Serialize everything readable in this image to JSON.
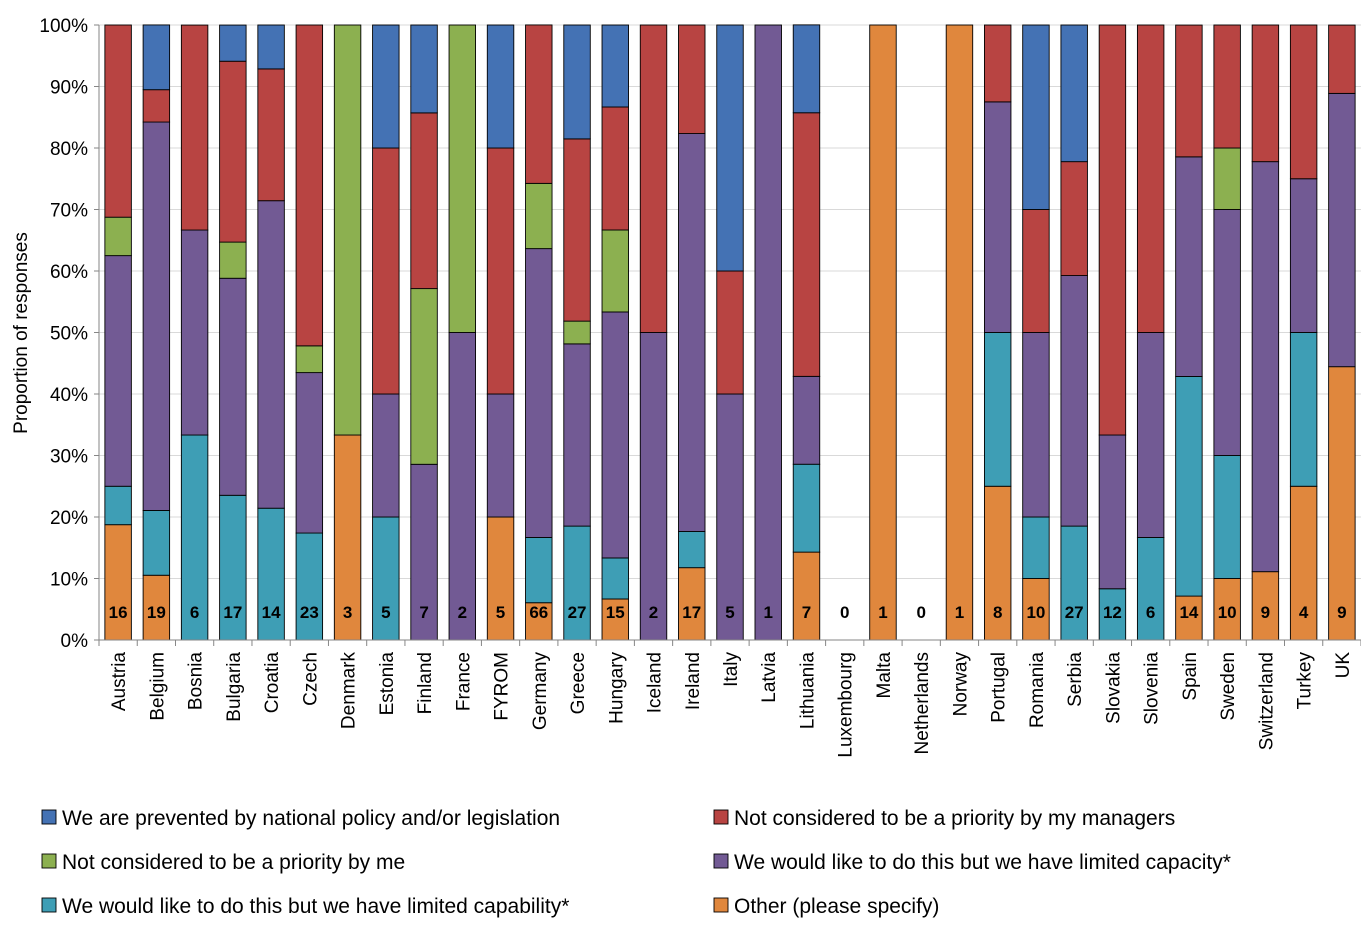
{
  "chart_data": {
    "type": "bar",
    "stacked": true,
    "percent": true,
    "ylabel": "Proportion of responses",
    "ylim": [
      0,
      100
    ],
    "yticks": [
      "0%",
      "10%",
      "20%",
      "30%",
      "40%",
      "50%",
      "60%",
      "70%",
      "80%",
      "90%",
      "100%"
    ],
    "grid": true,
    "legend_position": "bottom",
    "categories": [
      "Austria",
      "Belgium",
      "Bosnia",
      "Bulgaria",
      "Croatia",
      "Czech",
      "Denmark",
      "Estonia",
      "Finland",
      "France",
      "FYROM",
      "Germany",
      "Greece",
      "Hungary",
      "Iceland",
      "Ireland",
      "Italy",
      "Latvia",
      "Lithuania",
      "Luxembourg",
      "Malta",
      "Netherlands",
      "Norway",
      "Portugal",
      "Romania",
      "Serbia",
      "Slovakia",
      "Slovenia",
      "Spain",
      "Sweden",
      "Switzerland",
      "Turkey",
      "UK"
    ],
    "n_labels": [
      "16",
      "19",
      "6",
      "17",
      "14",
      "23",
      "3",
      "5",
      "7",
      "2",
      "5",
      "66",
      "27",
      "15",
      "2",
      "17",
      "5",
      "1",
      "7",
      "0",
      "1",
      "0",
      "1",
      "8",
      "10",
      "27",
      "12",
      "6",
      "14",
      "10",
      "9",
      "4",
      "9"
    ],
    "series": [
      {
        "name": "Other (please specify)",
        "color": "#E0873D",
        "values": [
          18.75,
          10.53,
          0,
          0,
          0,
          0,
          33.33,
          0,
          0,
          0,
          20,
          6.06,
          0,
          6.67,
          0,
          11.76,
          0,
          0,
          14.29,
          0,
          100,
          0,
          100,
          25,
          10,
          0,
          0,
          0,
          7.14,
          10,
          11.11,
          25,
          44.44
        ]
      },
      {
        "name": "We would like to do this but we have limited capability*",
        "color": "#3E9EB5",
        "values": [
          6.25,
          10.53,
          33.33,
          23.53,
          21.43,
          17.39,
          0,
          20,
          0,
          0,
          0,
          10.61,
          18.52,
          6.67,
          0,
          5.88,
          0,
          0,
          14.29,
          0,
          0,
          0,
          0,
          25,
          10,
          18.52,
          8.33,
          16.67,
          35.71,
          20,
          0,
          25,
          0
        ]
      },
      {
        "name": "We would like to do this but we have limited capacity*",
        "color": "#725A94",
        "values": [
          37.5,
          63.16,
          33.33,
          35.29,
          50,
          26.09,
          0,
          20,
          28.57,
          50,
          20,
          46.97,
          29.63,
          40,
          50,
          64.71,
          40,
          100,
          14.29,
          0,
          0,
          0,
          0,
          37.5,
          30,
          40.74,
          25,
          33.33,
          35.71,
          40,
          66.67,
          25,
          44.44
        ]
      },
      {
        "name": "Not considered to be a priority by me",
        "color": "#8CB050",
        "values": [
          6.25,
          0,
          0,
          5.88,
          0,
          4.35,
          66.67,
          0,
          28.57,
          50,
          0,
          10.61,
          3.7,
          13.33,
          0,
          0,
          0,
          0,
          0,
          0,
          0,
          0,
          0,
          0,
          0,
          0,
          0,
          0,
          0,
          10,
          0,
          0,
          0
        ]
      },
      {
        "name": "Not considered to be a priority by my managers",
        "color": "#B84442",
        "values": [
          31.25,
          5.26,
          33.33,
          29.41,
          21.43,
          52.17,
          0,
          40,
          28.57,
          0,
          40,
          25.76,
          29.63,
          20,
          50,
          17.65,
          20,
          0,
          42.86,
          0,
          0,
          0,
          0,
          12.5,
          20,
          18.52,
          66.67,
          50,
          21.43,
          20,
          22.22,
          25,
          11.11
        ]
      },
      {
        "name": "We are prevented by national policy and/or legislation",
        "color": "#4472B4",
        "values": [
          0,
          10.53,
          0,
          5.88,
          7.14,
          0,
          0,
          20,
          14.29,
          0,
          20,
          0,
          18.52,
          13.33,
          0,
          0,
          40,
          0,
          14.29,
          0,
          0,
          0,
          0,
          0,
          30,
          22.22,
          0,
          0,
          0,
          0,
          0,
          0,
          0
        ]
      }
    ],
    "legend": [
      {
        "label": "We are prevented by national policy and/or legislation",
        "color": "#4472B4"
      },
      {
        "label": "Not considered to be a priority by my managers",
        "color": "#B84442"
      },
      {
        "label": "Not considered to be a priority by me",
        "color": "#8CB050"
      },
      {
        "label": "We would like to do this but we have limited capacity*",
        "color": "#725A94"
      },
      {
        "label": "We would like to do this but we have limited capability*",
        "color": "#3E9EB5"
      },
      {
        "label": "Other (please specify)",
        "color": "#E0873D"
      }
    ]
  }
}
